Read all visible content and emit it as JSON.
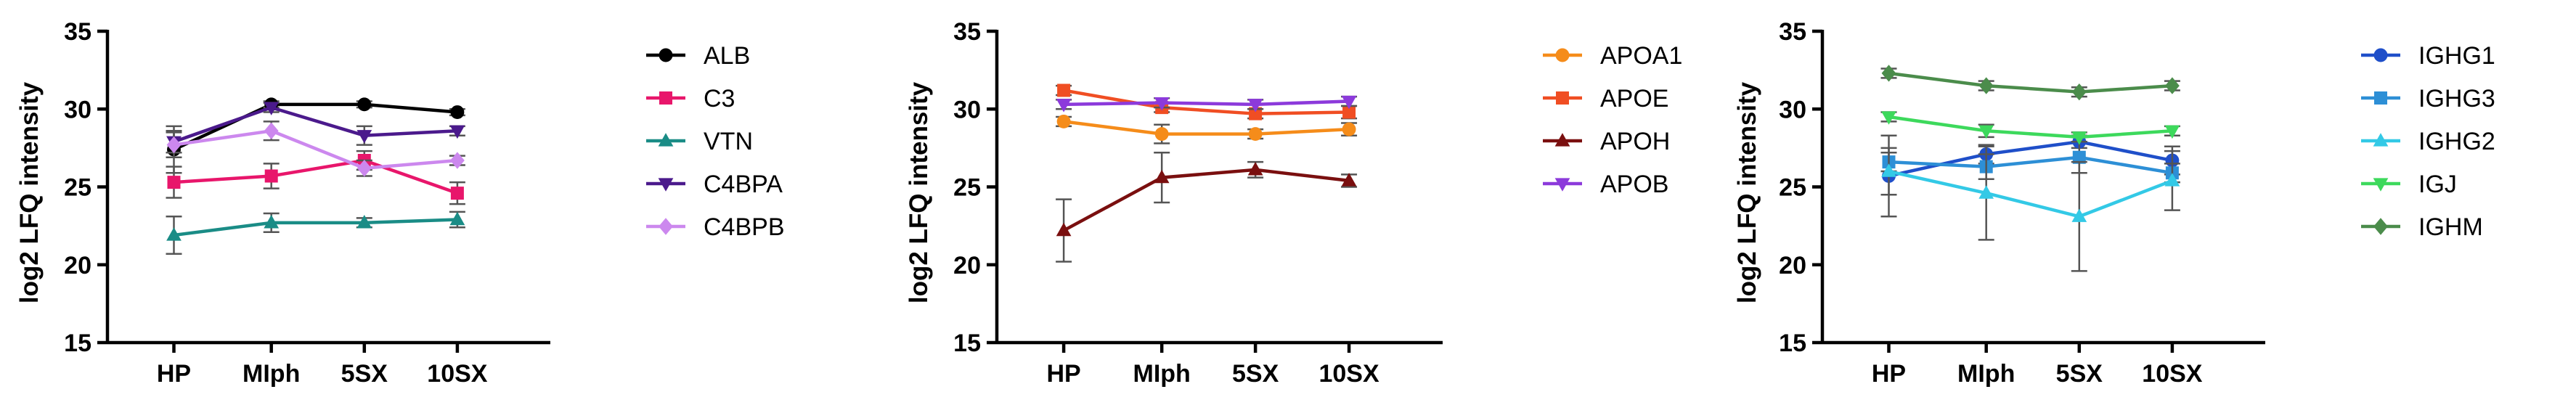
{
  "chart_data": [
    {
      "type": "line",
      "ylabel": "log2 LFQ intensity",
      "xlabel": "",
      "categories": [
        "HP",
        "MIph",
        "5SX",
        "10SX"
      ],
      "ylim": [
        15,
        35
      ],
      "yticks": [
        15,
        20,
        25,
        30,
        35
      ],
      "legend_position": "right",
      "series": [
        {
          "name": "ALB",
          "color": "#000000",
          "marker": "circle",
          "values": [
            27.4,
            30.3,
            30.3,
            29.8
          ],
          "errors": [
            1.5,
            0.2,
            0.2,
            0.2
          ]
        },
        {
          "name": "C3",
          "color": "#e8166b",
          "marker": "square",
          "values": [
            25.3,
            25.7,
            26.7,
            24.6
          ],
          "errors": [
            1.0,
            0.8,
            0.6,
            0.7
          ]
        },
        {
          "name": "VTN",
          "color": "#1a8c86",
          "marker": "triangle-up",
          "values": [
            21.9,
            22.7,
            22.7,
            22.9
          ],
          "errors": [
            1.2,
            0.6,
            0.3,
            0.5
          ]
        },
        {
          "name": "C4BPA",
          "color": "#4b1a8c",
          "marker": "triangle-down",
          "values": [
            27.9,
            30.1,
            28.3,
            28.6
          ],
          "errors": [
            0.7,
            0.3,
            0.6,
            0.3
          ]
        },
        {
          "name": "C4BPB",
          "color": "#cc88ee",
          "marker": "diamond",
          "values": [
            27.7,
            28.6,
            26.2,
            26.7
          ],
          "errors": [
            0.8,
            0.6,
            0.5,
            0.3
          ]
        }
      ]
    },
    {
      "type": "line",
      "ylabel": "log2 LFQ intensity",
      "xlabel": "",
      "categories": [
        "HP",
        "MIph",
        "5SX",
        "10SX"
      ],
      "ylim": [
        15,
        35
      ],
      "yticks": [
        15,
        20,
        25,
        30,
        35
      ],
      "legend_position": "right",
      "series": [
        {
          "name": "APOA1",
          "color": "#f58c1a",
          "marker": "circle",
          "values": [
            29.2,
            28.4,
            28.4,
            28.7
          ],
          "errors": [
            0.3,
            0.6,
            0.3,
            0.4
          ]
        },
        {
          "name": "APOE",
          "color": "#f04e23",
          "marker": "square",
          "values": [
            31.2,
            30.1,
            29.7,
            29.8
          ],
          "errors": [
            0.3,
            0.3,
            0.3,
            0.4
          ]
        },
        {
          "name": "APOH",
          "color": "#7a0f0f",
          "marker": "triangle-up",
          "values": [
            22.2,
            25.6,
            26.1,
            25.4
          ],
          "errors": [
            2.0,
            1.6,
            0.5,
            0.4
          ]
        },
        {
          "name": "APOB",
          "color": "#8c3adb",
          "marker": "triangle-down",
          "values": [
            30.3,
            30.4,
            30.3,
            30.5
          ],
          "errors": [
            0.3,
            0.3,
            0.3,
            0.3
          ]
        }
      ]
    },
    {
      "type": "line",
      "ylabel": "log2 LFQ intensity",
      "xlabel": "",
      "categories": [
        "HP",
        "MIph",
        "5SX",
        "10SX"
      ],
      "ylim": [
        15,
        35
      ],
      "yticks": [
        15,
        20,
        25,
        30,
        35
      ],
      "legend_position": "right",
      "series": [
        {
          "name": "IGHG1",
          "color": "#1f4fc9",
          "marker": "circle",
          "values": [
            25.7,
            27.1,
            27.9,
            26.7
          ],
          "errors": [
            2.6,
            0.6,
            0.4,
            0.9
          ]
        },
        {
          "name": "IGHG3",
          "color": "#2d8fd6",
          "marker": "square",
          "values": [
            26.6,
            26.3,
            26.9,
            25.9
          ],
          "errors": [
            0.6,
            0.8,
            1.0,
            0.6
          ]
        },
        {
          "name": "IGHG2",
          "color": "#33c9e6",
          "marker": "triangle-up",
          "values": [
            26.0,
            24.6,
            23.1,
            25.4
          ],
          "errors": [
            1.5,
            3.0,
            3.5,
            1.9
          ]
        },
        {
          "name": "IGJ",
          "color": "#3dd95c",
          "marker": "triangle-down",
          "values": [
            29.5,
            28.6,
            28.2,
            28.6
          ],
          "errors": [
            0.3,
            0.4,
            0.3,
            0.3
          ]
        },
        {
          "name": "IGHM",
          "color": "#4b8c4b",
          "marker": "diamond",
          "values": [
            32.3,
            31.5,
            31.1,
            31.5
          ],
          "errors": [
            0.3,
            0.3,
            0.3,
            0.3
          ]
        }
      ]
    }
  ]
}
